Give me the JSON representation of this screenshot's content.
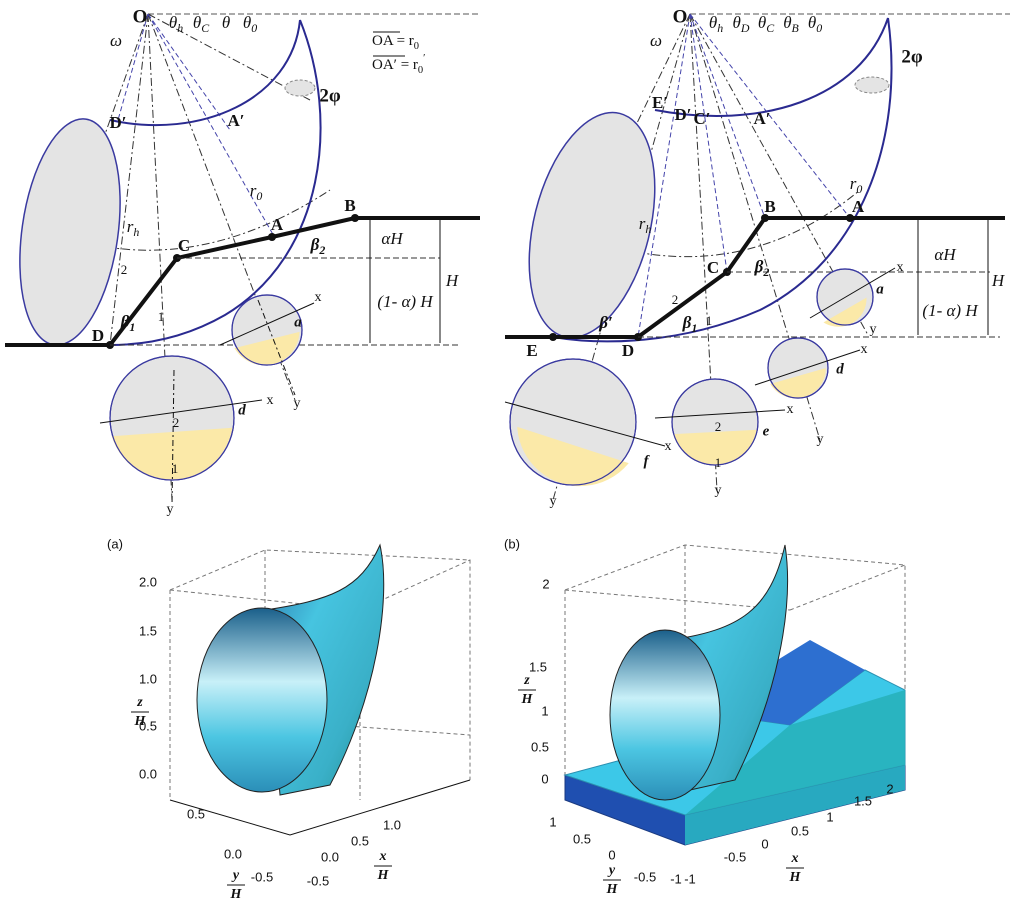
{
  "diagram_a": {
    "O": "O",
    "omega": "ω",
    "theta_h": {
      "t": "θ",
      "sub": "h"
    },
    "theta_C": {
      "t": "θ",
      "sub": "C"
    },
    "theta": "θ",
    "theta_0": {
      "t": "θ",
      "sub": "0"
    },
    "def_1": {
      "t": "OA = r",
      "sub": "0"
    },
    "def_2": {
      "t": "OA′ = r",
      "sub": "0",
      "sup": "′"
    },
    "two_phi": "2φ",
    "D_prime": "D′",
    "A_prime": "A′",
    "r_0": {
      "t": "r",
      "sub": "0"
    },
    "r_h": {
      "t": "r",
      "sub": "h"
    },
    "A": "A",
    "B": "B",
    "C": "C",
    "D": "D",
    "alpha_H": "αH",
    "H": "H",
    "one_minus_alpha_H": "(1- α) H",
    "beta_2": {
      "t": "β",
      "sub": "2"
    },
    "beta_1": {
      "t": "β",
      "sub": "1"
    },
    "slope_2": "2",
    "slope_1": "1",
    "circle_small": {
      "x": "x",
      "y": "y",
      "a": "a"
    },
    "circle_big": {
      "x": "x",
      "y": "y",
      "d": "d",
      "n2": "2",
      "n1": "1"
    }
  },
  "diagram_b": {
    "O": "O",
    "omega": "ω",
    "theta_h": {
      "t": "θ",
      "sub": "h"
    },
    "theta_D": {
      "t": "θ",
      "sub": "D"
    },
    "theta_C": {
      "t": "θ",
      "sub": "C"
    },
    "theta_B": {
      "t": "θ",
      "sub": "B"
    },
    "theta_0": {
      "t": "θ",
      "sub": "0"
    },
    "two_phi": "2φ",
    "E_prime": "E′",
    "D_prime": "D′",
    "C_prime": "C′",
    "A_prime": "A′",
    "r_h": {
      "t": "r",
      "sub": "h"
    },
    "r_0": {
      "t": "r",
      "sub": "0"
    },
    "A": "A",
    "B": "B",
    "C": "C",
    "D": "D",
    "E": "E",
    "alpha_H": "αH",
    "H": "H",
    "one_minus_alpha_H": "(1- α) H",
    "beta_2": {
      "t": "β",
      "sub": "2"
    },
    "beta_1": {
      "t": "β",
      "sub": "1"
    },
    "beta_prime": "β′",
    "slope_2": "2",
    "slope_1": "1",
    "circle_a": {
      "x": "x",
      "y": "y",
      "a": "a"
    },
    "circle_d": {
      "x": "x",
      "y": "y",
      "d": "d"
    },
    "circle_e": {
      "x": "x",
      "y": "y",
      "e": "e",
      "n2": "2",
      "n1": "1"
    },
    "circle_f": {
      "x": "x",
      "y": "y",
      "f": "f"
    }
  },
  "plot_a": {
    "label": "(a)",
    "z_label": {
      "num": "z",
      "den": "H"
    },
    "y_label": {
      "num": "y",
      "den": "H"
    },
    "x_label": {
      "num": "x",
      "den": "H"
    },
    "z_ticks": [
      "0.0",
      "0.5",
      "1.0",
      "1.5",
      "2.0"
    ],
    "y_ticks": [
      "0.5",
      "0.0",
      "-0.5"
    ],
    "x_ticks": [
      "-0.5",
      "0.0",
      "0.5",
      "1.0"
    ]
  },
  "plot_b": {
    "label": "(b)",
    "z_label": {
      "num": "z",
      "den": "H"
    },
    "y_label": {
      "num": "y",
      "den": "H"
    },
    "x_label": {
      "num": "x",
      "den": "H"
    },
    "z_ticks": [
      "0",
      "0.5",
      "1",
      "1.5",
      "2"
    ],
    "y_ticks": [
      "1",
      "0.5",
      "0",
      "-0.5",
      "-1"
    ],
    "x_ticks": [
      "-1",
      "-0.5",
      "0",
      "0.5",
      "1",
      "1.5",
      "2"
    ]
  }
}
